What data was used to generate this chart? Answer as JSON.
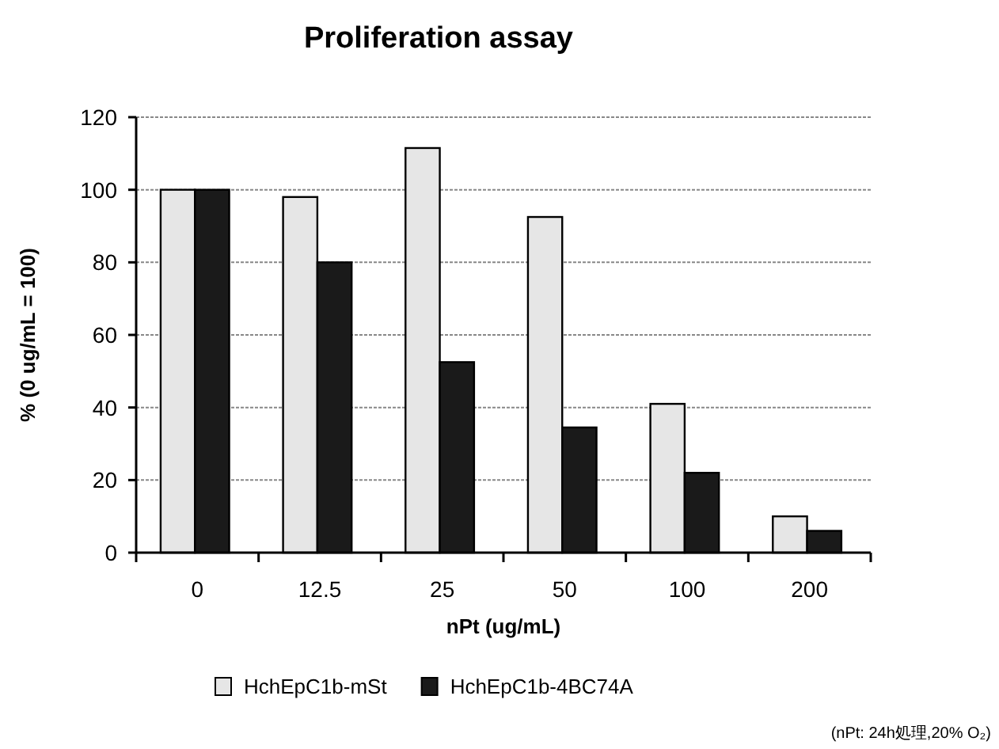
{
  "chart_data": {
    "type": "bar",
    "title": "Proliferation assay",
    "xlabel": "nPt (ug/mL)",
    "ylabel": "%  (0 ug/mL = 100)",
    "categories": [
      "0",
      "12.5",
      "25",
      "50",
      "100",
      "200"
    ],
    "series": [
      {
        "name": "HchEpC1b-mSt",
        "color": "#e6e6e6",
        "values": [
          100,
          98,
          111.5,
          92.5,
          41,
          10
        ]
      },
      {
        "name": "HchEpC1b-4BC74A",
        "color": "#1a1a1a",
        "values": [
          100,
          80,
          52.5,
          34.5,
          22,
          6
        ]
      }
    ],
    "ylim": [
      0,
      120
    ],
    "yticks": [
      0,
      20,
      40,
      60,
      80,
      100,
      120
    ],
    "grid": "y",
    "legend": "bottom",
    "annotations": [
      "(nPt: 24h処理,20% O₂)"
    ]
  }
}
